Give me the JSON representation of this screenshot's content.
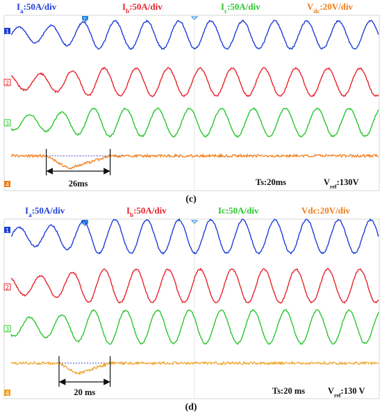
{
  "chart_data": [
    {
      "type": "line",
      "caption": "(c)",
      "header": {
        "ia": {
          "main": "I",
          "sub": "a",
          "rest": ":50A/div",
          "color": "#1f3ed8"
        },
        "ib": {
          "main": "I",
          "sub": "b",
          "rest": ":50A/div",
          "color": "#e8232d"
        },
        "ic": {
          "main": "I",
          "sub": "c",
          "rest": ":50A/div",
          "color": "#28c62c"
        },
        "vdc": {
          "main": "V",
          "sub": "dc",
          "rest": ":20V/div",
          "color": "#f07c18"
        }
      },
      "channel_markers": [
        "1",
        "2",
        "3",
        "4"
      ],
      "time_base": "Ts:20ms",
      "reference": {
        "main": "V",
        "sub": "ref",
        "rest": ":130V",
        "color": "#7a2aa6"
      },
      "dip_duration_label": "26ms",
      "series": [
        {
          "channel": "1",
          "color": "#1f3ed8",
          "phase": 0.0
        },
        {
          "channel": "2",
          "color": "#e8232d",
          "phase": 2.1
        },
        {
          "channel": "3",
          "color": "#28c62c",
          "phase": 4.2
        },
        {
          "channel": "4",
          "color": "#f07c18"
        }
      ],
      "sine": {
        "cycles_total": 11.5,
        "disturbance_end_cycle": 2.5,
        "dip_start_cycle": 1.1,
        "dip_end_cycle": 3.1,
        "steady_amplitude_div": 1.0,
        "disturbed_amplitude_div": 0.55
      }
    },
    {
      "type": "line",
      "caption": "(d)",
      "header": {
        "ia": {
          "main": "I",
          "sub": "a",
          "rest": ":50A/div",
          "color": "#1f3ed8"
        },
        "ib": {
          "main": "I",
          "sub": "b",
          "rest": ":50A/div",
          "color": "#e8232d"
        },
        "ic": {
          "main": "Ic",
          "sub": "",
          "rest": ":50A/div",
          "color": "#28c62c"
        },
        "vdc": {
          "main": "Vdc",
          "sub": "",
          "rest": ":20V/div",
          "color": "#f07c18"
        }
      },
      "channel_markers": [
        "1",
        "2",
        "3",
        "4"
      ],
      "time_base": "Ts:20 ms",
      "reference": {
        "main": "V",
        "sub": "ref",
        "rest": ":130 V",
        "color": "#7a2aa6"
      },
      "dip_duration_label": "20 ms",
      "series": [
        {
          "channel": "1",
          "color": "#1f3ed8",
          "phase": 0.0
        },
        {
          "channel": "2",
          "color": "#e8232d",
          "phase": 2.1
        },
        {
          "channel": "3",
          "color": "#28c62c",
          "phase": 4.2
        },
        {
          "channel": "4",
          "color": "#f0a020"
        }
      ],
      "sine": {
        "cycles_total": 11.5,
        "disturbance_end_cycle": 2.5,
        "dip_start_cycle": 1.5,
        "dip_end_cycle": 3.1,
        "steady_amplitude_div": 1.0,
        "disturbed_amplitude_div": 0.55
      }
    }
  ]
}
